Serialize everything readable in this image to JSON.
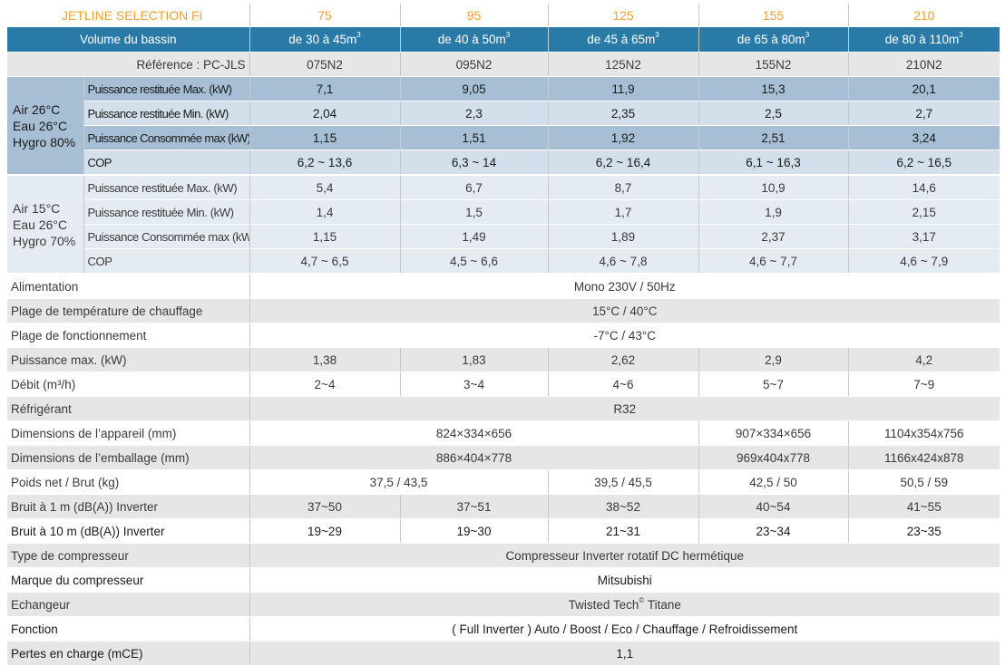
{
  "header": {
    "model_title": "JETLINE SELECTION Fi",
    "models": [
      "75",
      "95",
      "125",
      "155",
      "210"
    ]
  },
  "volume": {
    "label": "Volume du bassin",
    "values": [
      "de 30 à 45m",
      "de 40 à 50m",
      "de 45 à 65m",
      "de 65 à 80m",
      "de 80 à 110m"
    ],
    "unit_sup": "3"
  },
  "reference": {
    "label": "Référence : PC-JLS",
    "values": [
      "075N2",
      "095N2",
      "125N2",
      "155N2",
      "210N2"
    ]
  },
  "group1": {
    "condition_lines": [
      "Air 26°C",
      "Eau 26°C",
      "Hygro 80%"
    ],
    "rows": [
      {
        "label": "Puissance restituée Max. (kW)",
        "values": [
          "7,1",
          "9,05",
          "11,9",
          "15,3",
          "20,1"
        ]
      },
      {
        "label": "Puissance restituée Min. (kW)",
        "values": [
          "2,04",
          "2,3",
          "2,35",
          "2,5",
          "2,7"
        ]
      },
      {
        "label": "Puissance Consommée max (kW)",
        "values": [
          "1,15",
          "1,51",
          "1,92",
          "2,51",
          "3,24"
        ]
      },
      {
        "label": "COP",
        "values": [
          "6,2 ~ 13,6",
          "6,3 ~ 14",
          "6,2 ~ 16,4",
          "6,1 ~ 16,3",
          "6,2 ~ 16,5"
        ]
      }
    ]
  },
  "group2": {
    "condition_lines": [
      "Air 15°C",
      "Eau 26°C",
      "Hygro 70%"
    ],
    "rows": [
      {
        "label": "Puissance restituée Max. (kW)",
        "values": [
          "5,4",
          "6,7",
          "8,7",
          "10,9",
          "14,6"
        ]
      },
      {
        "label": "Puissance restituée Min. (kW)",
        "values": [
          "1,4",
          "1,5",
          "1,7",
          "1,9",
          "2,15"
        ]
      },
      {
        "label": "Puissance Consommée max (kW)",
        "values": [
          "1,15",
          "1,49",
          "1,89",
          "2,37",
          "3,17"
        ]
      },
      {
        "label": "COP",
        "values": [
          "4,7 ~ 6,5",
          "4,5 ~ 6,6",
          "4,6 ~ 7,8",
          "4,6 ~ 7,7",
          "4,6 ~ 7,9"
        ]
      }
    ]
  },
  "specs": {
    "alimentation": {
      "label": "Alimentation",
      "value": "Mono 230V / 50Hz"
    },
    "plage_temp": {
      "label": "Plage de température de chauffage",
      "value": "15°C / 40°C"
    },
    "plage_fonct": {
      "label": "Plage de fonctionnement",
      "value": "-7°C / 43°C"
    },
    "puissance_max": {
      "label": "Puissance max. (kW)",
      "values": [
        "1,38",
        "1,83",
        "2,62",
        "2,9",
        "4,2"
      ]
    },
    "debit": {
      "label": "Débit (m³/h)",
      "values": [
        "2~4",
        "3~4",
        "4~6",
        "5~7",
        "7~9"
      ]
    },
    "refrigerant": {
      "label": "Réfrigérant",
      "value": "R32"
    },
    "dim_appareil": {
      "label": "Dimensions de l’appareil (mm)",
      "values": [
        "824×334×656",
        "907×334×656",
        "1104x354x756"
      ]
    },
    "dim_emballage": {
      "label": "Dimensions de l’emballage (mm)",
      "values": [
        "886×404×778",
        "969x404x778",
        "1166x424x878"
      ]
    },
    "poids": {
      "label": "Poids net / Brut (kg)",
      "values": [
        "37,5 / 43,5",
        "39,5 / 45,5",
        "42,5 / 50",
        "50,5 / 59"
      ]
    },
    "bruit_1m": {
      "label": "Bruit à 1 m (dB(A)) Inverter",
      "values": [
        "37~50",
        "37~51",
        "38~52",
        "40~54",
        "41~55"
      ]
    },
    "bruit_10m": {
      "label": "Bruit à 10 m (dB(A)) Inverter",
      "values": [
        "19~29",
        "19~30",
        "21~31",
        "23~34",
        "23~35"
      ]
    },
    "type_compresseur": {
      "label": "Type de compresseur",
      "value": "Compresseur Inverter rotatif DC hermétique"
    },
    "marque": {
      "label": "Marque du compresseur",
      "value": "Mitsubishi"
    },
    "echangeur": {
      "label": "Echangeur",
      "value": "Twisted Tech",
      "value_sup": "©",
      "value_suffix": " Titane"
    },
    "fonction": {
      "label": "Fonction",
      "value": "( Full Inverter ) Auto / Boost / Eco / Chauffage / Refroidissement"
    },
    "pertes": {
      "label": "Pertes en charge (mCE)",
      "value": "1,1"
    }
  }
}
